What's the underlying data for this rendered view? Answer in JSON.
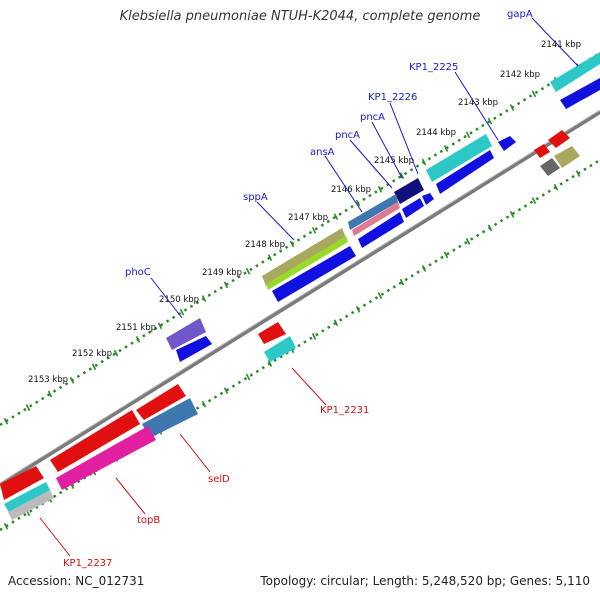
{
  "title": "Klebsiella pneumoniae NTUH-K2044, complete genome",
  "footer": {
    "accession": "Accession: NC_012731",
    "summary": "Topology: circular; Length: 5,248,520 bp; Genes: 5,110"
  },
  "ticks": [
    "2141 kbp",
    "2142 kbp",
    "2143 kbp",
    "2144 kbp",
    "2145 kbp",
    "2146 kbp",
    "2147 kbp",
    "2148 kbp",
    "2149 kbp",
    "2150 kbp",
    "2151 kbp",
    "2152 kbp",
    "2153 kbp"
  ],
  "gene_labels": [
    {
      "name": "gapA",
      "strand": "forward"
    },
    {
      "name": "KP1_2225",
      "strand": "forward"
    },
    {
      "name": "KP1_2226",
      "strand": "forward"
    },
    {
      "name": "pncA",
      "strand": "forward"
    },
    {
      "name": "pncA",
      "strand": "forward"
    },
    {
      "name": "ansA",
      "strand": "forward"
    },
    {
      "name": "sppA",
      "strand": "forward"
    },
    {
      "name": "phoC",
      "strand": "forward"
    },
    {
      "name": "KP1_2231",
      "strand": "reverse"
    },
    {
      "name": "selD",
      "strand": "reverse"
    },
    {
      "name": "topB",
      "strand": "reverse"
    },
    {
      "name": "KP1_2237",
      "strand": "reverse"
    }
  ],
  "colors": {
    "forward_label": "#1a1acc",
    "reverse_label": "#cc1111",
    "tick_dots": "#2a8a2a",
    "backbone": "#888888",
    "blue": "#1010e0",
    "red": "#e01010",
    "cyan": "#2cc8c8",
    "magenta": "#e0208a",
    "steel": "#3f78b0",
    "olive": "#a8a860",
    "lime": "#9ad82a",
    "navy": "#10107a",
    "purple": "#7058c8",
    "pink": "#e07a90",
    "gray": "#666666",
    "silver": "#bbbbbb"
  }
}
